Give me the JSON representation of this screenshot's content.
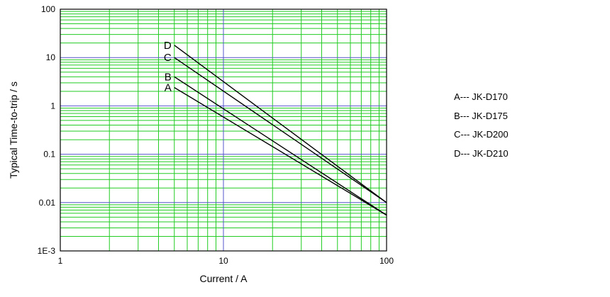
{
  "chart_data": {
    "type": "line",
    "title": "",
    "xlabel": "Current / A",
    "ylabel": "Typical Time-to-trip / s",
    "x_scale": "log",
    "y_scale": "log",
    "xlim": [
      1,
      100
    ],
    "ylim": [
      0.001,
      100
    ],
    "x_ticks": [
      {
        "v": 1,
        "label": "1"
      },
      {
        "v": 10,
        "label": "10"
      },
      {
        "v": 100,
        "label": "100"
      }
    ],
    "y_ticks": [
      {
        "v": 100,
        "label": "100"
      },
      {
        "v": 10,
        "label": "10"
      },
      {
        "v": 1,
        "label": "1"
      },
      {
        "v": 0.1,
        "label": "0.1"
      },
      {
        "v": 0.01,
        "label": "0.01"
      },
      {
        "v": 0.001,
        "label": "1E-3"
      }
    ],
    "grid": true,
    "colors": {
      "minor_grid": "#22cc22",
      "major_grid": "#5555cc",
      "series": "#000000"
    },
    "series": [
      {
        "name": "A",
        "x": [
          5,
          100
        ],
        "y": [
          2.4,
          0.0055
        ]
      },
      {
        "name": "B",
        "x": [
          5,
          100
        ],
        "y": [
          4,
          0.0055
        ]
      },
      {
        "name": "C",
        "x": [
          5,
          100
        ],
        "y": [
          10,
          0.01
        ]
      },
      {
        "name": "D",
        "x": [
          5,
          100
        ],
        "y": [
          18,
          0.01
        ]
      }
    ],
    "legend": {
      "placement": "right",
      "entries": [
        "A--- JK-D170",
        "B--- JK-D175",
        "C--- JK-D200",
        "D--- JK-D210"
      ]
    }
  }
}
